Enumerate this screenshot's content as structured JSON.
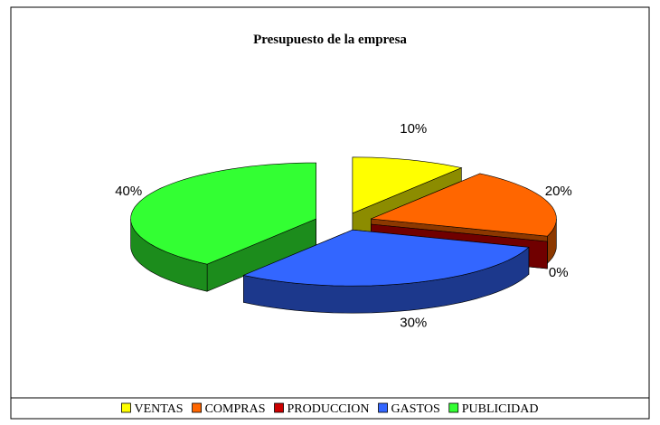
{
  "chart_data": {
    "type": "pie3d",
    "title": "Presupuesto de la empresa",
    "categories": [
      "VENTAS",
      "COMPRAS",
      "PRODUCCION",
      "GASTOS",
      "PUBLICIDAD"
    ],
    "values": [
      10,
      20,
      0,
      30,
      40
    ],
    "value_labels": [
      "10%",
      "20%",
      "0%",
      "30%",
      "40%"
    ],
    "colors": [
      "#ffff00",
      "#ff6600",
      "#cc0000",
      "#3366ff",
      "#33ff33"
    ],
    "legend": "bottom"
  }
}
